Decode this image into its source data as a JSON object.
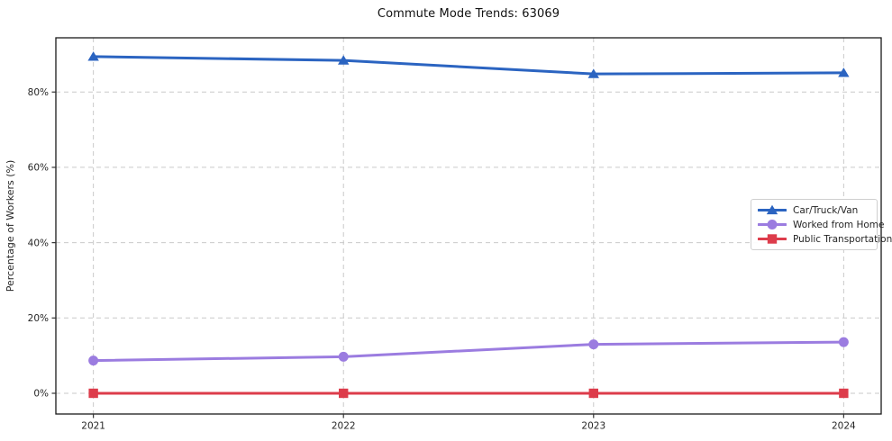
{
  "title": "Commute Mode Trends: 63069",
  "chart_data": {
    "type": "line",
    "x": [
      2021,
      2022,
      2023,
      2024
    ],
    "x_tick_labels": [
      "2021",
      "2022",
      "2023",
      "2024"
    ],
    "y_ticks": [
      0,
      20,
      40,
      60,
      80
    ],
    "y_tick_labels": [
      "0%",
      "20%",
      "40%",
      "60%",
      "80%"
    ],
    "xlim": [
      2020.85,
      2024.15
    ],
    "ylim": [
      -5.5,
      94.4
    ],
    "grid": true,
    "xlabel": "",
    "ylabel": "Percentage of Workers (%)",
    "legend_position": "right-middle",
    "series": [
      {
        "name": "Car/Truck/Van",
        "marker": "triangle",
        "color": "#2b64c1",
        "values": [
          89.4,
          88.4,
          84.8,
          85.1
        ]
      },
      {
        "name": "Worked from Home",
        "marker": "circle",
        "color": "#9b7ce0",
        "values": [
          8.7,
          9.7,
          13.0,
          13.6
        ]
      },
      {
        "name": "Public Transportation",
        "marker": "square",
        "color": "#dd3c4b",
        "values": [
          0.0,
          0.0,
          0.0,
          0.0
        ]
      }
    ]
  },
  "colors": {
    "grid": "#c9c9c9",
    "axis_border": "#1a1a1a",
    "tick_text": "#262626",
    "background": "#ffffff"
  }
}
